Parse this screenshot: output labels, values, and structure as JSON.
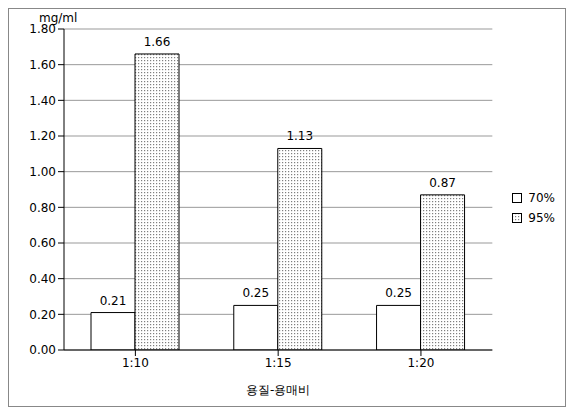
{
  "chart_data": {
    "type": "bar",
    "y_label": "mg/ml",
    "x_label": "용질-용매비",
    "categories": [
      "1:10",
      "1:15",
      "1:20"
    ],
    "series": [
      {
        "name": "70%",
        "color": "#ffffff",
        "values": [
          0.21,
          0.25,
          0.25
        ]
      },
      {
        "name": "95%",
        "color": "#7f7f7f",
        "marker": "dots",
        "values": [
          1.66,
          1.13,
          0.87
        ]
      }
    ],
    "ylim": [
      0,
      1.8
    ],
    "yticks": [
      {
        "value": 0,
        "label": "0.00"
      },
      {
        "value": 0.2,
        "label": "0.20"
      },
      {
        "value": 0.4,
        "label": "0.40"
      },
      {
        "value": 0.6,
        "label": "0.60"
      },
      {
        "value": 0.8,
        "label": "0.80"
      },
      {
        "value": 1.0,
        "label": "1.00"
      },
      {
        "value": 1.2,
        "label": "1.20"
      },
      {
        "value": 1.4,
        "label": "1.40"
      },
      {
        "value": 1.6,
        "label": "1.60"
      },
      {
        "value": 1.8,
        "label": "1.80"
      }
    ],
    "grid": true,
    "data_labels": true,
    "legend": "right"
  }
}
